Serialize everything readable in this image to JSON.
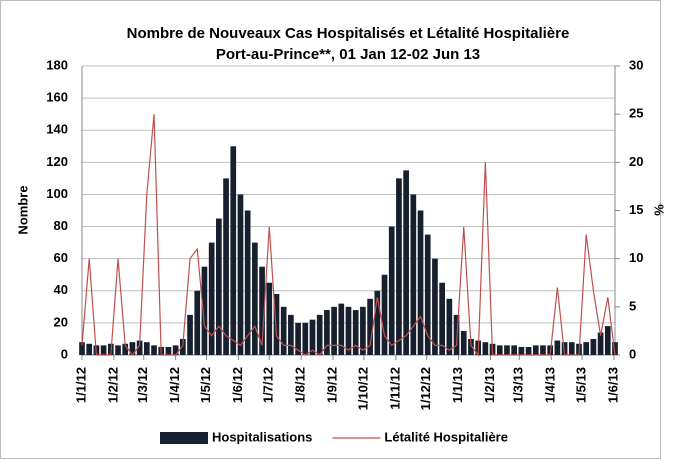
{
  "chart_data": {
    "type": "bar_line",
    "title": "Nombre de Nouveaux Cas Hospitalisés et Létalité Hospitalière",
    "subtitle": "Port-au-Prince**, 01 Jan 12-02 Jun 13",
    "y_label": "Nombre",
    "y2_label": "%",
    "x": [
      "2012-01-01",
      "2012-01-08",
      "2012-01-15",
      "2012-01-22",
      "2012-01-29",
      "2012-02-05",
      "2012-02-12",
      "2012-02-19",
      "2012-02-26",
      "2012-03-04",
      "2012-03-11",
      "2012-03-18",
      "2012-03-25",
      "2012-04-01",
      "2012-04-08",
      "2012-04-15",
      "2012-04-22",
      "2012-04-29",
      "2012-05-06",
      "2012-05-13",
      "2012-05-20",
      "2012-05-27",
      "2012-06-03",
      "2012-06-10",
      "2012-06-17",
      "2012-06-24",
      "2012-07-01",
      "2012-07-08",
      "2012-07-15",
      "2012-07-22",
      "2012-07-29",
      "2012-08-05",
      "2012-08-12",
      "2012-08-19",
      "2012-08-26",
      "2012-09-02",
      "2012-09-09",
      "2012-09-16",
      "2012-09-23",
      "2012-09-30",
      "2012-10-07",
      "2012-10-14",
      "2012-10-21",
      "2012-10-28",
      "2012-11-04",
      "2012-11-11",
      "2012-11-18",
      "2012-11-25",
      "2012-12-02",
      "2012-12-09",
      "2012-12-16",
      "2012-12-23",
      "2012-12-30",
      "2013-01-06",
      "2013-01-13",
      "2013-01-20",
      "2013-01-27",
      "2013-02-03",
      "2013-02-10",
      "2013-02-17",
      "2013-02-24",
      "2013-03-03",
      "2013-03-10",
      "2013-03-17",
      "2013-03-24",
      "2013-03-31",
      "2013-04-07",
      "2013-04-14",
      "2013-04-21",
      "2013-04-28",
      "2013-05-05",
      "2013-05-12",
      "2013-05-19",
      "2013-05-26",
      "2013-06-02"
    ],
    "series": [
      {
        "name": "Hospitalisations",
        "color": "#17202e",
        "values": [
          8,
          7,
          6,
          6,
          7,
          6,
          7,
          8,
          9,
          8,
          6,
          5,
          5,
          6,
          10,
          25,
          40,
          55,
          70,
          85,
          110,
          130,
          100,
          90,
          70,
          55,
          45,
          38,
          30,
          25,
          20,
          20,
          22,
          25,
          28,
          30,
          32,
          30,
          28,
          30,
          35,
          40,
          50,
          80,
          110,
          115,
          100,
          90,
          75,
          60,
          45,
          35,
          25,
          15,
          10,
          9,
          8,
          7,
          6,
          6,
          6,
          5,
          5,
          6,
          6,
          6,
          9,
          8,
          8,
          7,
          8,
          10,
          14,
          18,
          8
        ]
      },
      {
        "name": "Létalité Hospitalière",
        "color": "#c0504d",
        "axis": "y2",
        "values": [
          1,
          10,
          0,
          0,
          0,
          10,
          1,
          0,
          1,
          16.7,
          25,
          0,
          0,
          0,
          1,
          10,
          11,
          3,
          2,
          3,
          2,
          1.5,
          1,
          2,
          3,
          1,
          13.3,
          2,
          1,
          1,
          0.5,
          0,
          0.5,
          0,
          1,
          1,
          1,
          0.5,
          1,
          0.5,
          1,
          6,
          2,
          1,
          1.5,
          2,
          3,
          4,
          2,
          1,
          1,
          0.5,
          1,
          13.3,
          1,
          0,
          20,
          0,
          0,
          0,
          0,
          0,
          0,
          0,
          0,
          0,
          7,
          0,
          0,
          0,
          12.5,
          6.7,
          2,
          6,
          0
        ]
      }
    ],
    "xlim": [
      "2012-01-01",
      "2013-06-02"
    ],
    "xticks": [
      {
        "value": "2012-01-01",
        "label": "1/1/12"
      },
      {
        "value": "2012-02-01",
        "label": "1/2/12"
      },
      {
        "value": "2012-03-01",
        "label": "1/3/12"
      },
      {
        "value": "2012-04-01",
        "label": "1/4/12"
      },
      {
        "value": "2012-05-01",
        "label": "1/5/12"
      },
      {
        "value": "2012-06-01",
        "label": "1/6/12"
      },
      {
        "value": "2012-07-01",
        "label": "1/7/12"
      },
      {
        "value": "2012-08-01",
        "label": "1/8/12"
      },
      {
        "value": "2012-09-01",
        "label": "1/9/12"
      },
      {
        "value": "2012-10-01",
        "label": "1/10/12"
      },
      {
        "value": "2012-11-01",
        "label": "1/11/12"
      },
      {
        "value": "2012-12-01",
        "label": "1/12/12"
      },
      {
        "value": "2013-01-01",
        "label": "1/1/13"
      },
      {
        "value": "2013-02-01",
        "label": "1/2/13"
      },
      {
        "value": "2013-03-01",
        "label": "1/3/13"
      },
      {
        "value": "2013-04-01",
        "label": "1/4/13"
      },
      {
        "value": "2013-05-01",
        "label": "1/5/13"
      },
      {
        "value": "2013-06-01",
        "label": "1/6/13"
      }
    ],
    "ylim": [
      0,
      180
    ],
    "yticks": [
      0,
      20,
      40,
      60,
      80,
      100,
      120,
      140,
      160,
      180
    ],
    "y2lim": [
      0,
      30
    ],
    "y2ticks": [
      0,
      5,
      10,
      15,
      20,
      25,
      30
    ],
    "grid": true,
    "legend": "bottom"
  }
}
